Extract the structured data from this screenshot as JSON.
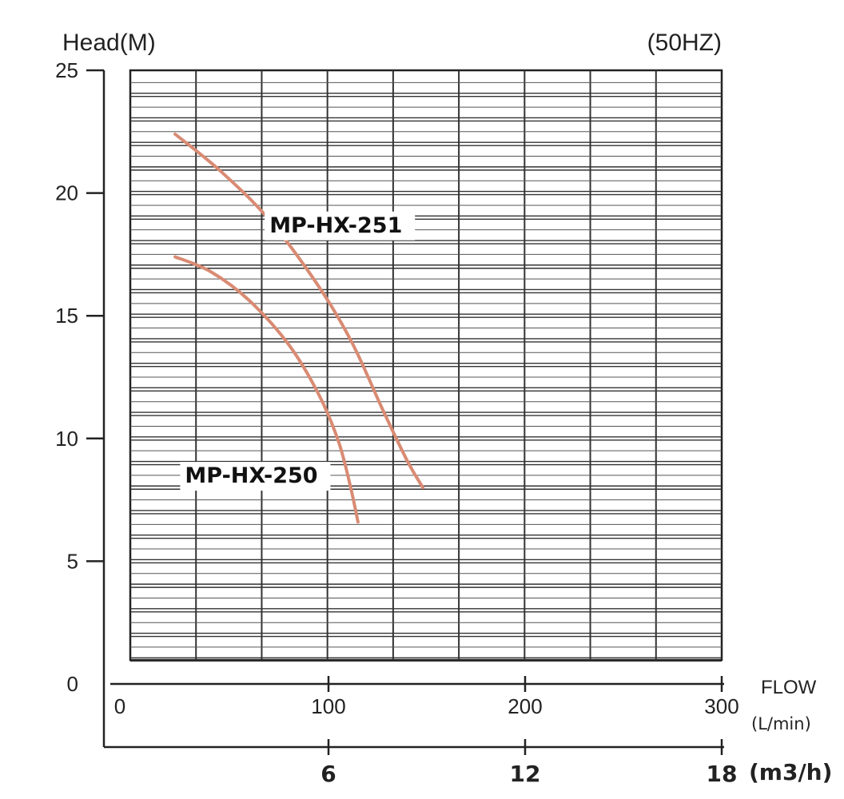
{
  "chart_data": {
    "type": "line",
    "ylabel": "Head(M)",
    "frequency": "(50HZ)",
    "y_ticks": [
      "25",
      "20",
      "15",
      "10",
      "5",
      "0"
    ],
    "y_tick_values": [
      25,
      20,
      15,
      10,
      5,
      0
    ],
    "ylim": [
      0,
      25
    ],
    "x_axis_lpm": {
      "label": "FLOW",
      "unit": "(L/min)",
      "ticks": [
        "0",
        "100",
        "200",
        "300"
      ],
      "tick_values": [
        0,
        100,
        200,
        300
      ],
      "range": [
        0,
        300
      ]
    },
    "x_axis_m3h": {
      "unit": "(m3/h)",
      "ticks": [
        "6",
        "12",
        "18"
      ],
      "tick_values": [
        6,
        12,
        18
      ]
    },
    "grid": true,
    "curve_color": "#d98b73",
    "series": [
      {
        "name": "MP-HX-251",
        "points": [
          [
            22,
            22.4
          ],
          [
            45,
            20.9
          ],
          [
            70,
            18.9
          ],
          [
            95,
            16.2
          ],
          [
            112,
            13.9
          ],
          [
            128,
            11.1
          ],
          [
            140,
            9.1
          ],
          [
            148,
            8.0
          ]
        ]
      },
      {
        "name": "MP-HX-250",
        "points": [
          [
            22,
            17.4
          ],
          [
            40,
            16.8
          ],
          [
            60,
            15.6
          ],
          [
            80,
            13.8
          ],
          [
            95,
            11.8
          ],
          [
            105,
            9.9
          ],
          [
            111,
            8.1
          ],
          [
            115,
            6.6
          ]
        ]
      }
    ]
  }
}
